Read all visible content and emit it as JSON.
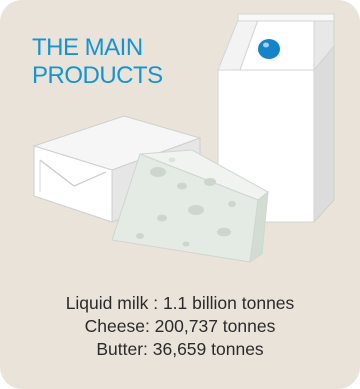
{
  "title": {
    "line1": "THE MAIN",
    "line2": "PRODUCTS"
  },
  "products": [
    {
      "name": "Liquid milk",
      "text": "Liquid milk : 1.1 billion tonnes"
    },
    {
      "name": "Cheese",
      "text": "Cheese: 200,737 tonnes"
    },
    {
      "name": "Butter",
      "text": "Butter: 36,659 tonnes"
    }
  ],
  "colors": {
    "background": "#eae3da",
    "title": "#1594cf",
    "carton_cap": "#1583c9",
    "text": "#2b2b2b"
  },
  "icons": [
    "milk-carton-icon",
    "butter-block-icon",
    "cheese-wedge-icon"
  ]
}
